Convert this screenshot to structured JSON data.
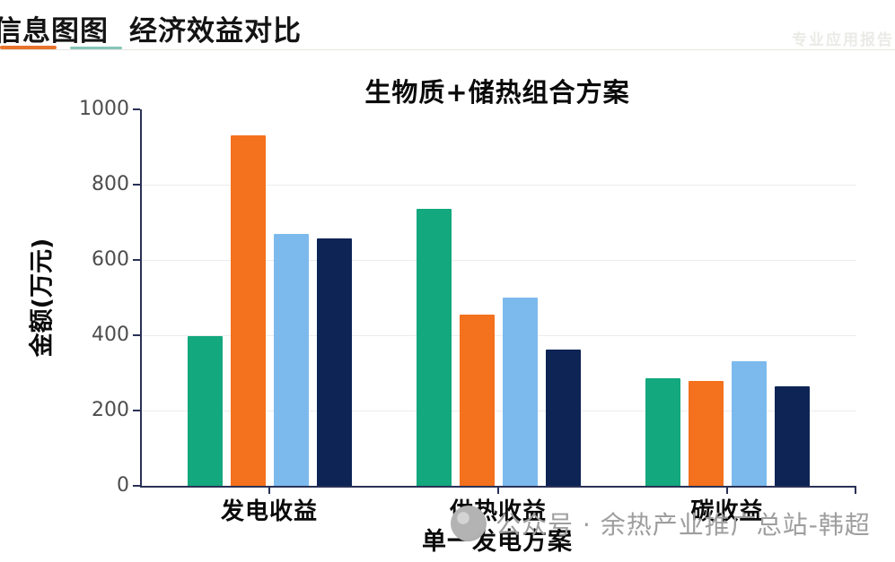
{
  "header": {
    "brand": "信息图图",
    "title": "经济效益对比",
    "top_right_watermark": "专业应用报告",
    "accent_orange": "#e8742b",
    "accent_teal": "#84c6b9"
  },
  "bottom_watermark": {
    "logo_icon": "circle-logo",
    "text": "公众号 · 余热产业推广总站-韩超"
  },
  "chart_data": {
    "type": "bar",
    "title": "生物质+储热组合方案",
    "xlabel": "单一发电方案",
    "ylabel": "金额(万元)",
    "categories": [
      "发电收益",
      "供热收益",
      "碳收益"
    ],
    "series": [
      {
        "name": "green",
        "color": "#13a87d",
        "values": [
          398,
          735,
          285
        ]
      },
      {
        "name": "orange",
        "color": "#f4711d",
        "values": [
          930,
          455,
          278
        ]
      },
      {
        "name": "light_blue",
        "color": "#7cbaed",
        "values": [
          668,
          500,
          332
        ]
      },
      {
        "name": "navy",
        "color": "#0d2455",
        "values": [
          657,
          362,
          265
        ]
      }
    ],
    "ylim": [
      0,
      1000
    ],
    "yticks": [
      0,
      200,
      400,
      600,
      800,
      1000
    ],
    "grid": true,
    "legend": false,
    "axis_color": "#2a3156",
    "gridline_color": "#ececec",
    "tick_label_color": "#4d4d4d"
  }
}
